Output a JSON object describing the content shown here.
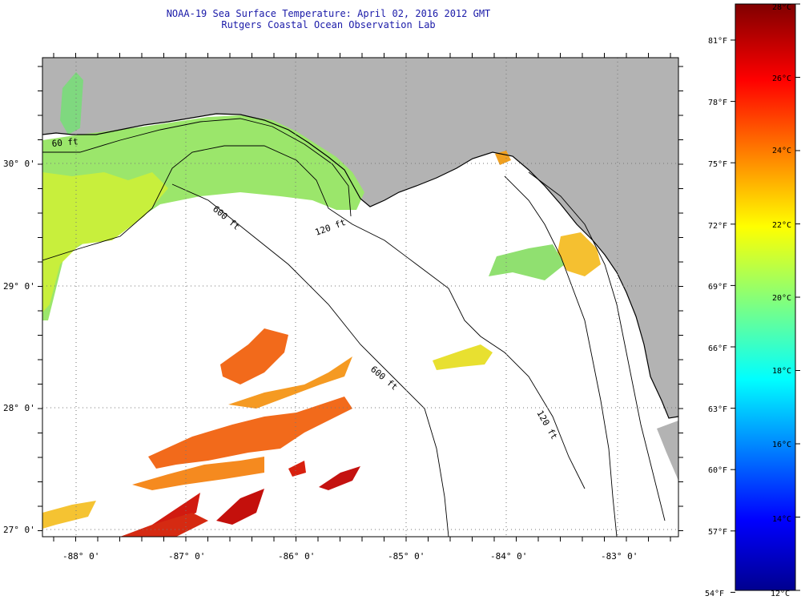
{
  "title": {
    "line1": "NOAA-19 Sea Surface Temperature:  April 02, 2016 2012 GMT",
    "line2": "Rutgers Coastal Ocean Observation Lab"
  },
  "map": {
    "lat_labels": [
      "30° 0'",
      "29° 0'",
      "28° 0'",
      "27° 0'"
    ],
    "lon_labels": [
      "-88° 0'",
      "-87° 0'",
      "-86° 0'",
      "-85° 0'",
      "-84° 0'",
      "-83° 0'"
    ],
    "isobath_labels": [
      "60 ft",
      "120 ft",
      "600 ft",
      "600 ft",
      "120 ft"
    ],
    "colors": {
      "land": "#b3b3b3",
      "ocean_cloud": "#ffffff",
      "coast": "#000000"
    }
  },
  "colorbar": {
    "fahrenheit_labels": [
      "81°F",
      "78°F",
      "75°F",
      "72°F",
      "69°F",
      "66°F",
      "63°F",
      "60°F",
      "57°F",
      "54°F"
    ],
    "celsius_labels": [
      "28°C",
      "26°C",
      "24°C",
      "22°C",
      "20°C",
      "18°C",
      "16°C",
      "14°C",
      "12°C"
    ],
    "celsius_min": 12,
    "celsius_max": 28
  }
}
